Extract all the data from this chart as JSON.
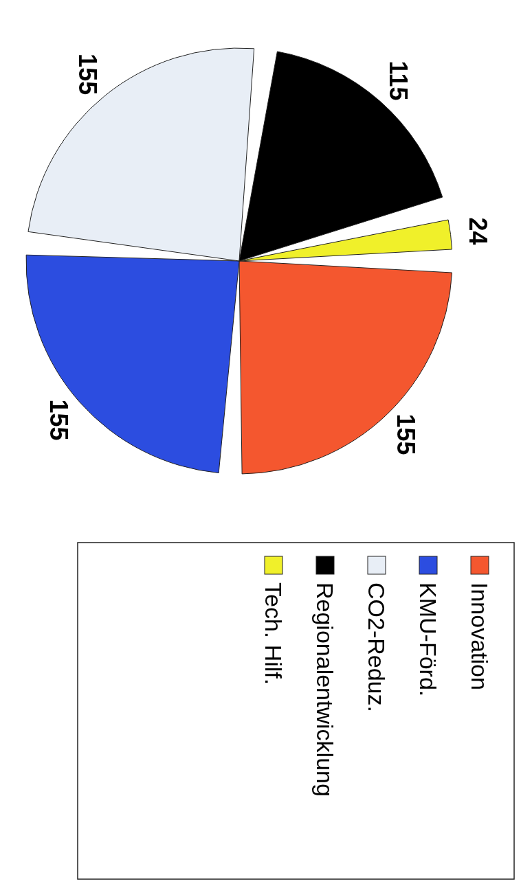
{
  "chart_data": {
    "type": "pie",
    "categories": [
      "Innovation",
      "KMU-Förd.",
      "CO2-Reduz.",
      "Regionalentwicklung",
      "Tech. Hilf."
    ],
    "values": [
      155,
      155,
      155,
      115,
      24
    ],
    "colors": [
      "#f4572f",
      "#2c4de0",
      "#e8eef6",
      "#000000",
      "#f0f02a"
    ],
    "data_labels": true,
    "legend": "right"
  }
}
